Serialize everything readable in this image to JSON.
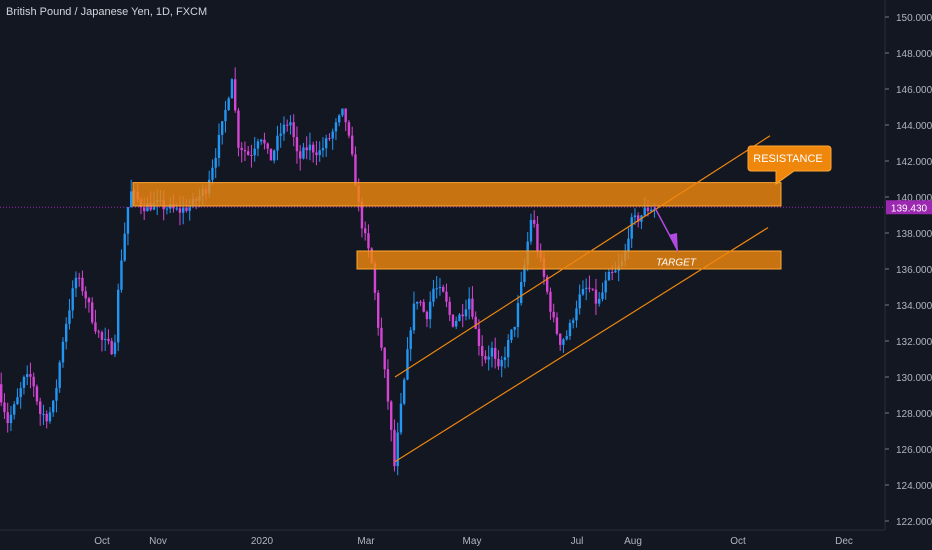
{
  "header": {
    "title": "British Pound / Japanese Yen, 1D, FXCM"
  },
  "colors": {
    "background": "#131722",
    "up_candle": "#2196f3",
    "down_candle": "#d445d4",
    "zone": "#f0870d",
    "channel": "#f0870d",
    "arrow": "#b04ae0",
    "axis_text": "#b2b5be",
    "price_tag": "#9c27b0"
  },
  "chart_data": {
    "type": "candlestick",
    "symbol": "GBPJPY",
    "interval": "1D",
    "y_axis": {
      "ticks": [
        "150.000",
        "148.000",
        "146.000",
        "144.000",
        "142.000",
        "140.000",
        "138.000",
        "136.000",
        "134.000",
        "132.000",
        "130.000",
        "128.000",
        "126.000",
        "124.000",
        "122.000"
      ],
      "range": [
        121.2,
        150.7
      ]
    },
    "x_axis": {
      "ticks": [
        "Oct",
        "Nov",
        "2020",
        "Mar",
        "May",
        "Jul",
        "Aug",
        "Oct",
        "Dec"
      ]
    },
    "last_price": "139.430",
    "key_points": [
      {
        "label": "Aug 2019 low",
        "price": 126.6
      },
      {
        "label": "Oct 2019 breakout",
        "price": 140.8
      },
      {
        "label": "Dec 2019 high",
        "price": 147.9
      },
      {
        "label": "Feb 2020 high",
        "price": 144.9
      },
      {
        "label": "Mar 2020 low",
        "price": 124.0
      },
      {
        "label": "Jun 2020 high",
        "price": 139.7
      },
      {
        "label": "Jun 2020 low",
        "price": 131.9
      },
      {
        "label": "Aug 2020 close",
        "price": 139.43
      }
    ],
    "zones": [
      {
        "name": "resistance",
        "from": 139.5,
        "to": 140.8
      },
      {
        "name": "target",
        "from": 136.0,
        "to": 137.0
      }
    ],
    "channel": {
      "lower": [
        {
          "date": "Mar 2020",
          "price": 125.3
        },
        {
          "date": "Sep 2020",
          "price": 138.3
        }
      ],
      "upper": [
        {
          "date": "Mar 2020",
          "price": 130.0
        },
        {
          "date": "Sep 2020",
          "price": 143.4
        }
      ]
    },
    "annotations": [
      {
        "text": "RESISTANCE",
        "kind": "callout"
      },
      {
        "text": "TARGET",
        "kind": "label"
      }
    ]
  }
}
